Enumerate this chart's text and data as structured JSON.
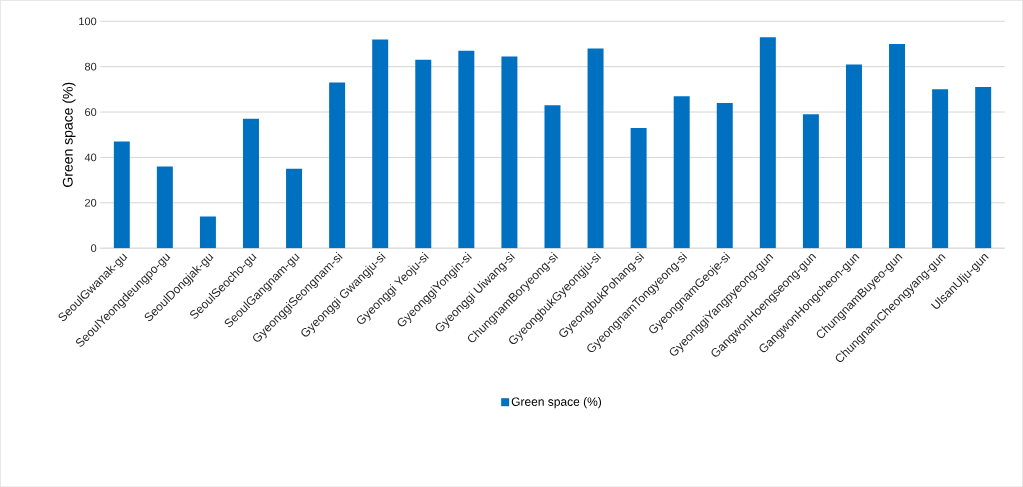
{
  "chart_data": {
    "type": "bar",
    "ylabel": "Green space (%)",
    "categories": [
      "SeoulGwanak-gu",
      "SeoulYeongdeungpo-gu",
      "SeoulDongjak-gu",
      "SeoulSeocho-gu",
      "SeoulGangnam-gu",
      "GyeonggiSeongnam-si",
      "Gyeonggi Gwangju-si",
      "Gyeonggi Yeoju-si",
      "GyeonggiYongin-si",
      "Gyeonggi Uiwang-si",
      "ChungnamBoryeong-si",
      "GyeongbukGyeongju-si",
      "GyeongbukPohang-si",
      "GyeongnamTongyeong-si",
      "GyeongnamGeoje-si",
      "GyeonggiYangpyeong-gun",
      "GangwonHoengseong-gun",
      "GangwonHongcheon-gun",
      "ChungnamBuyeo-gun",
      "ChungnamCheongyang-gun",
      "UlsanUlju-gun"
    ],
    "series": [
      {
        "name": "Green space (%)",
        "color": "#0070c0",
        "values": [
          47,
          36,
          14,
          57,
          35,
          73,
          92,
          83,
          87,
          84.5,
          63,
          88,
          53,
          67,
          64,
          93,
          59,
          81,
          90,
          70,
          71
        ]
      }
    ],
    "ylim": [
      0,
      100
    ],
    "yticks": [
      0,
      20,
      40,
      60,
      80,
      100
    ],
    "grid": "y",
    "legend": "bottom"
  }
}
